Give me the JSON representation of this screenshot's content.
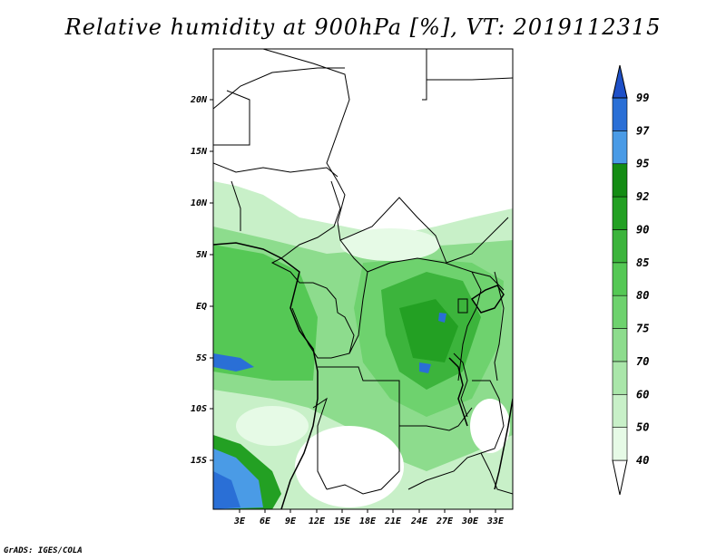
{
  "title": "Relative humidity at 900hPa [%], VT: 2019112315",
  "credit": "GrADS: IGES/COLA",
  "axes": {
    "x_ticks": [
      "3E",
      "6E",
      "9E",
      "12E",
      "15E",
      "18E",
      "21E",
      "24E",
      "27E",
      "30E",
      "33E"
    ],
    "y_ticks": [
      "20N",
      "15N",
      "10N",
      "5N",
      "EQ",
      "5S",
      "10S",
      "15S"
    ]
  },
  "colorbar": {
    "levels": [
      "40",
      "50",
      "60",
      "70",
      "75",
      "80",
      "85",
      "90",
      "92",
      "95",
      "97",
      "99"
    ],
    "colors": [
      "#ffffff",
      "#e6fae6",
      "#c8f0c8",
      "#aae6aa",
      "#8ddc8d",
      "#6ed26e",
      "#55c855",
      "#3cb43c",
      "#23a023",
      "#148c14",
      "#4a9be6",
      "#2a6fd6",
      "#1e50c8"
    ]
  }
}
